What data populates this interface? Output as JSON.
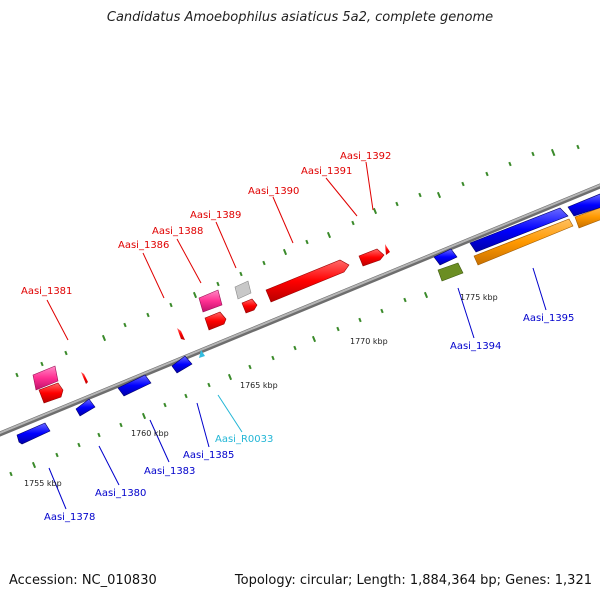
{
  "title": "Candidatus Amoebophilus asiaticus 5a2, complete genome",
  "footer": {
    "accession": "Accession: NC_010830",
    "summary": "Topology: circular; Length: 1,884,364 bp; Genes: 1,321"
  },
  "colors": {
    "backbone": "#8c8c8c",
    "tick": "#3a8a2a",
    "forward_cds": "#ff0000",
    "reverse_cds": "#0000ff",
    "pseudo": "#ff2f92",
    "other": "#c8c8c8",
    "rna": "#33bde0",
    "orange": "#ff9900",
    "olive": "#6b8e23"
  },
  "scale_labels": [
    {
      "text": "1755 kbp",
      "kbp": 1755
    },
    {
      "text": "1760 kbp",
      "kbp": 1760
    },
    {
      "text": "1765 kbp",
      "kbp": 1765
    },
    {
      "text": "1770 kbp",
      "kbp": 1770
    },
    {
      "text": "1775 kbp",
      "kbp": 1775
    }
  ],
  "gene_labels": [
    {
      "text": "Aasi_1381",
      "color": "#e00000"
    },
    {
      "text": "Aasi_1386",
      "color": "#e00000"
    },
    {
      "text": "Aasi_1388",
      "color": "#e00000"
    },
    {
      "text": "Aasi_1389",
      "color": "#e00000"
    },
    {
      "text": "Aasi_1390",
      "color": "#e00000"
    },
    {
      "text": "Aasi_1391",
      "color": "#e00000"
    },
    {
      "text": "Aasi_1392",
      "color": "#e00000"
    },
    {
      "text": "Aasi_1378",
      "color": "#0000cc"
    },
    {
      "text": "Aasi_1380",
      "color": "#0000cc"
    },
    {
      "text": "Aasi_1383",
      "color": "#0000cc"
    },
    {
      "text": "Aasi_1385",
      "color": "#0000cc"
    },
    {
      "text": "Aasi_R0033",
      "color": "#22b6d6"
    },
    {
      "text": "Aasi_1394",
      "color": "#0000cc"
    },
    {
      "text": "Aasi_1395",
      "color": "#0000cc"
    }
  ]
}
